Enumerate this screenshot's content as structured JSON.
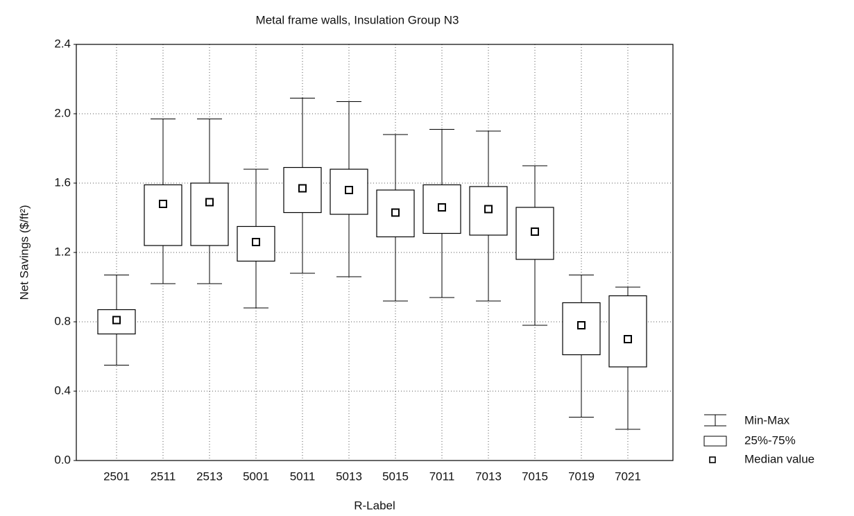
{
  "chart_data": {
    "type": "box",
    "title": "Metal frame walls, Insulation Group N3",
    "x_label": "R-Label",
    "y_label": "Net Savings ($/ft²)",
    "categories": [
      "2501",
      "2511",
      "2513",
      "5001",
      "5011",
      "5013",
      "5015",
      "7011",
      "7013",
      "7015",
      "7019",
      "7021"
    ],
    "min": [
      0.55,
      1.02,
      1.02,
      0.88,
      1.08,
      1.06,
      0.92,
      0.94,
      0.92,
      0.78,
      0.25,
      0.18
    ],
    "q1": [
      0.73,
      1.24,
      1.24,
      1.15,
      1.43,
      1.42,
      1.29,
      1.31,
      1.3,
      1.16,
      0.61,
      0.54
    ],
    "median": [
      0.81,
      1.48,
      1.49,
      1.26,
      1.57,
      1.56,
      1.43,
      1.46,
      1.45,
      1.32,
      0.78,
      0.7
    ],
    "q3": [
      0.87,
      1.59,
      1.6,
      1.35,
      1.69,
      1.68,
      1.56,
      1.59,
      1.58,
      1.46,
      0.91,
      0.95
    ],
    "max": [
      1.07,
      1.97,
      1.97,
      1.68,
      2.09,
      2.07,
      1.88,
      1.91,
      1.9,
      1.7,
      1.07,
      1.0
    ],
    "legend": {
      "whisker": "Min-Max",
      "box": "25%-75%",
      "median": "Median value"
    },
    "legend_position": "lower right",
    "color": "#000000",
    "ylim": [
      0,
      2.4
    ],
    "yticks": [
      {
        "value": 0,
        "label": "0.0"
      },
      0.4,
      0.8,
      1.2,
      1.6,
      {
        "value": 2,
        "label": "2.0"
      },
      2.4
    ],
    "grid": true
  }
}
